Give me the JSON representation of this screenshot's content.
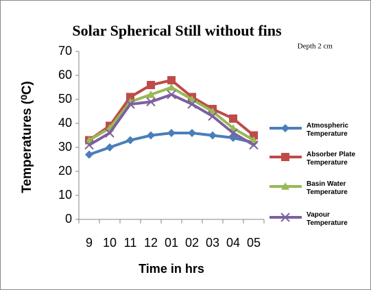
{
  "chart_data": {
    "type": "line",
    "title": "Solar Spherical Still without fins",
    "subtitle": "Depth  2 cm",
    "y_label": "Temperatures (⁰C)",
    "x_label": "Time in hrs",
    "categories": [
      "9",
      "10",
      "11",
      "12",
      "01",
      "02",
      "03",
      "04",
      "05"
    ],
    "series": [
      {
        "name": "Atmospheric Temperature",
        "color": "#4a7ebb",
        "marker": "diamond",
        "values": [
          27,
          30,
          33,
          35,
          36,
          36,
          35,
          34,
          32
        ]
      },
      {
        "name": "Absorber Plate Temperature",
        "color": "#be4b48",
        "marker": "square",
        "values": [
          33,
          39,
          51,
          56,
          58,
          51,
          46,
          42,
          35
        ]
      },
      {
        "name": "Basin Water Temperature",
        "color": "#98b954",
        "marker": "triangle",
        "values": [
          33,
          38,
          49,
          52,
          55,
          50,
          45,
          38,
          33
        ]
      },
      {
        "name": "Vapour Temperature",
        "color": "#7d60a0",
        "marker": "x",
        "values": [
          31,
          36,
          48,
          49,
          52,
          48,
          43,
          36,
          31
        ]
      }
    ],
    "ylim": [
      0,
      70
    ],
    "yticks": [
      0,
      10,
      20,
      30,
      40,
      50,
      60,
      70
    ],
    "grid": false,
    "legend": "right"
  }
}
